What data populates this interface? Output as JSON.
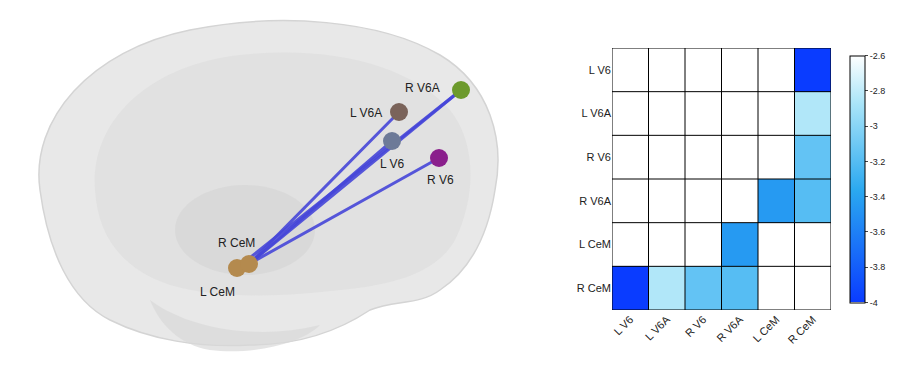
{
  "chart_data": {
    "type": "heatmap",
    "x": [
      "L V6",
      "L V6A",
      "R V6",
      "R V6A",
      "L CeM",
      "R CeM"
    ],
    "y": [
      "L V6",
      "L V6A",
      "R V6",
      "R V6A",
      "L CeM",
      "R CeM"
    ],
    "cells": [
      [
        null,
        null,
        null,
        null,
        null,
        -4.0
      ],
      [
        null,
        null,
        null,
        null,
        null,
        -2.85
      ],
      [
        null,
        null,
        null,
        null,
        null,
        -3.15
      ],
      [
        null,
        null,
        null,
        null,
        -3.45,
        -3.2
      ],
      [
        null,
        null,
        null,
        -3.45,
        null,
        null
      ],
      [
        -4.0,
        -2.85,
        -3.15,
        -3.2,
        null,
        null
      ]
    ],
    "colorbar": {
      "range": [
        -4,
        -2.6
      ],
      "ticks": [
        -2.6,
        -2.8,
        -3,
        -3.2,
        -3.4,
        -3.6,
        -3.8,
        -4
      ]
    }
  },
  "diagram": {
    "nodes": [
      {
        "label": "L V6",
        "color": "#6d7a98"
      },
      {
        "label": "L V6A",
        "color": "#7a635a"
      },
      {
        "label": "R V6",
        "color": "#8a1f8c"
      },
      {
        "label": "R V6A",
        "color": "#6c9a2c"
      },
      {
        "label": "L CeM",
        "color": "#b48a4e"
      },
      {
        "label": "R CeM",
        "color": "#b48a4e"
      }
    ]
  }
}
